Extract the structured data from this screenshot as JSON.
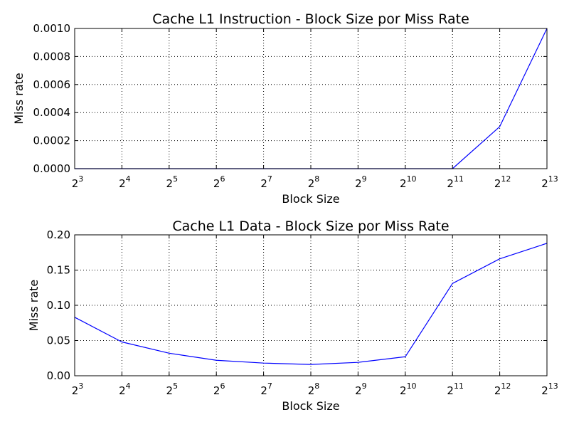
{
  "chart_data": [
    {
      "type": "line",
      "title": "Cache L1 Instruction - Block Size por Miss Rate",
      "xlabel": "Block Size",
      "ylabel": "Miss rate",
      "x_scale": "log2",
      "x": [
        8,
        16,
        32,
        64,
        128,
        256,
        512,
        1024,
        2048,
        4096,
        8192
      ],
      "x_tick_base": "2",
      "x_tick_exponents": [
        "3",
        "4",
        "5",
        "6",
        "7",
        "8",
        "9",
        "10",
        "11",
        "12",
        "13"
      ],
      "xlim": [
        8,
        8192
      ],
      "ylim": [
        0,
        0.001
      ],
      "y_ticks": [
        0,
        0.0002,
        0.0004,
        0.0006,
        0.0008,
        0.001
      ],
      "y_tick_labels": [
        "0.0000",
        "0.0002",
        "0.0004",
        "0.0006",
        "0.0008",
        "0.0010"
      ],
      "grid": true,
      "series": [
        {
          "color": "#0000ff",
          "values": [
            0,
            0,
            0,
            0,
            0,
            0,
            0,
            0,
            0,
            0.0003,
            0.001
          ]
        }
      ]
    },
    {
      "type": "line",
      "title": "Cache L1 Data - Block Size por Miss Rate",
      "xlabel": "Block Size",
      "ylabel": "Miss rate",
      "x_scale": "log2",
      "x": [
        8,
        16,
        32,
        64,
        128,
        256,
        512,
        1024,
        2048,
        4096,
        8192
      ],
      "x_tick_base": "2",
      "x_tick_exponents": [
        "3",
        "4",
        "5",
        "6",
        "7",
        "8",
        "9",
        "10",
        "11",
        "12",
        "13"
      ],
      "xlim": [
        8,
        8192
      ],
      "ylim": [
        0,
        0.2
      ],
      "y_ticks": [
        0,
        0.05,
        0.1,
        0.15,
        0.2
      ],
      "y_tick_labels": [
        "0.00",
        "0.05",
        "0.10",
        "0.15",
        "0.20"
      ],
      "grid": true,
      "series": [
        {
          "color": "#0000ff",
          "values": [
            0.083,
            0.048,
            0.032,
            0.022,
            0.018,
            0.016,
            0.019,
            0.027,
            0.131,
            0.166,
            0.188
          ]
        }
      ]
    }
  ]
}
